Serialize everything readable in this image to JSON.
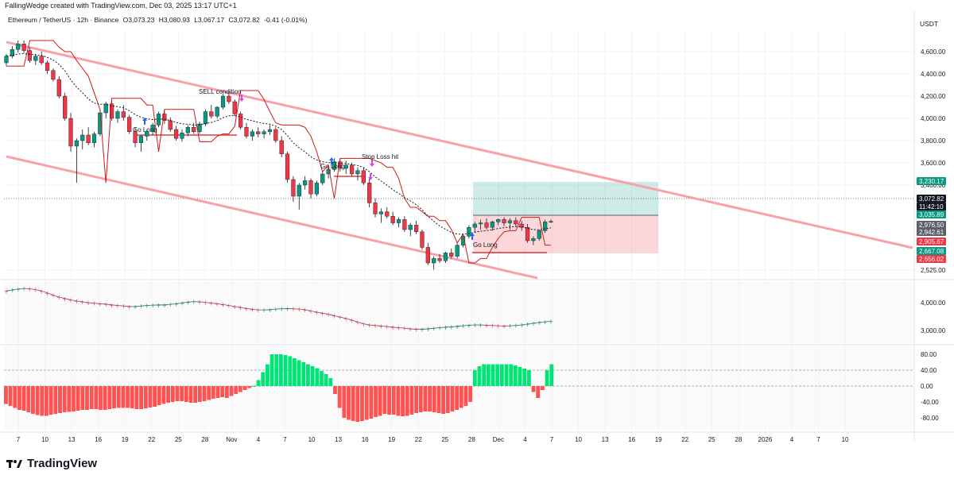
{
  "header": {
    "caption": "FallingWedge created with TradingView.com, Dec 03, 2025 13:17 UTC+1"
  },
  "symbol": {
    "name": "Ethereum / TetherUS · 12h · Binance",
    "ohlc": [
      "O3,073.23",
      "H3,080.93",
      "L3,067.17",
      "C3,072.82",
      "-0.41 (-0.01%)"
    ]
  },
  "currency": "USDT",
  "brand": "TradingView",
  "colors": {
    "up": "#089981",
    "down": "#f23645",
    "channel": "#f7a1a8",
    "stop": "#d11a1a",
    "grid": "#f0f3fa"
  },
  "chart_data": [
    {
      "type": "candlestick",
      "pane": "price",
      "timeframe": "12h",
      "x_ticks": [
        "7",
        "10",
        "13",
        "16",
        "19",
        "22",
        "25",
        "28",
        "Nov",
        "4",
        "7",
        "10",
        "13",
        "16",
        "19",
        "22",
        "25",
        "28",
        "Dec",
        "4",
        "7",
        "10",
        "13",
        "16",
        "19",
        "22",
        "25",
        "28",
        "2026",
        "4",
        "7",
        "10"
      ],
      "y_ticks": [
        "4,600.00",
        "4,400.00",
        "4,200.00",
        "4,000.00",
        "3,800.00",
        "3,600.00",
        "3,400.00",
        "2,525.00"
      ],
      "price_tags": [
        {
          "value": "3,230.17",
          "color": "#089981"
        },
        {
          "value": "3,072.82",
          "color": "#131722"
        },
        {
          "value": "11:42:10",
          "color": "#131722"
        },
        {
          "value": "3,035.89",
          "color": "#089981"
        },
        {
          "value": "2,976.50",
          "color": "#5d606b"
        },
        {
          "value": "2,942.61",
          "color": "#5d606b"
        },
        {
          "value": "2,905.67",
          "color": "#f23645"
        },
        {
          "value": "2,667.08",
          "color": "#089981"
        },
        {
          "value": "2,656.02",
          "color": "#f23645"
        }
      ],
      "candles": [
        [
          4500,
          4580,
          4470,
          4560
        ],
        [
          4560,
          4650,
          4540,
          4620
        ],
        [
          4620,
          4700,
          4590,
          4670
        ],
        [
          4670,
          4700,
          4590,
          4610
        ],
        [
          4610,
          4640,
          4500,
          4520
        ],
        [
          4520,
          4580,
          4480,
          4560
        ],
        [
          4560,
          4600,
          4480,
          4500
        ],
        [
          4500,
          4520,
          4400,
          4430
        ],
        [
          4430,
          4450,
          4330,
          4350
        ],
        [
          4350,
          4380,
          4180,
          4200
        ],
        [
          4200,
          4230,
          3980,
          4000
        ],
        [
          4000,
          4050,
          3700,
          3750
        ],
        [
          3750,
          3820,
          3420,
          3800
        ],
        [
          3800,
          3900,
          3720,
          3850
        ],
        [
          3850,
          3920,
          3760,
          3780
        ],
        [
          3780,
          3880,
          3740,
          3860
        ],
        [
          3860,
          4080,
          3840,
          4050
        ],
        [
          4050,
          4150,
          4000,
          4130
        ],
        [
          4130,
          4180,
          3980,
          4000
        ],
        [
          4000,
          4080,
          3960,
          4060
        ],
        [
          4060,
          4120,
          3980,
          4010
        ],
        [
          4010,
          4030,
          3860,
          3880
        ],
        [
          3880,
          3920,
          3740,
          3780
        ],
        [
          3780,
          3850,
          3700,
          3840
        ],
        [
          3840,
          3900,
          3800,
          3880
        ],
        [
          3880,
          3960,
          3850,
          3940
        ],
        [
          3940,
          4060,
          3920,
          4040
        ],
        [
          4040,
          4080,
          3950,
          3980
        ],
        [
          3980,
          4010,
          3880,
          3900
        ],
        [
          3900,
          3930,
          3800,
          3820
        ],
        [
          3820,
          3900,
          3790,
          3870
        ],
        [
          3870,
          3940,
          3840,
          3920
        ],
        [
          3920,
          3960,
          3860,
          3880
        ],
        [
          3880,
          3970,
          3860,
          3950
        ],
        [
          3950,
          4080,
          3930,
          4060
        ],
        [
          4060,
          4120,
          4000,
          4020
        ],
        [
          4020,
          4110,
          4000,
          4100
        ],
        [
          4100,
          4220,
          4080,
          4200
        ],
        [
          4200,
          4250,
          4130,
          4150
        ],
        [
          4150,
          4170,
          4020,
          4040
        ],
        [
          4040,
          4060,
          3900,
          3920
        ],
        [
          3920,
          3960,
          3820,
          3840
        ],
        [
          3840,
          3900,
          3800,
          3880
        ],
        [
          3880,
          3920,
          3830,
          3860
        ],
        [
          3860,
          3900,
          3820,
          3880
        ],
        [
          3880,
          3940,
          3850,
          3900
        ],
        [
          3900,
          3920,
          3780,
          3800
        ],
        [
          3800,
          3840,
          3650,
          3680
        ],
        [
          3680,
          3700,
          3420,
          3450
        ],
        [
          3450,
          3480,
          3250,
          3300
        ],
        [
          3300,
          3420,
          3180,
          3400
        ],
        [
          3400,
          3480,
          3360,
          3440
        ],
        [
          3440,
          3460,
          3280,
          3320
        ],
        [
          3320,
          3440,
          3300,
          3420
        ],
        [
          3420,
          3520,
          3400,
          3500
        ],
        [
          3500,
          3580,
          3460,
          3540
        ],
        [
          3540,
          3640,
          3520,
          3610
        ],
        [
          3610,
          3640,
          3520,
          3550
        ],
        [
          3550,
          3620,
          3500,
          3580
        ],
        [
          3580,
          3600,
          3480,
          3500
        ],
        [
          3500,
          3560,
          3440,
          3530
        ],
        [
          3530,
          3560,
          3400,
          3420
        ],
        [
          3420,
          3460,
          3200,
          3240
        ],
        [
          3240,
          3280,
          3110,
          3140
        ],
        [
          3140,
          3190,
          3060,
          3160
        ],
        [
          3160,
          3200,
          3100,
          3120
        ],
        [
          3120,
          3160,
          3040,
          3060
        ],
        [
          3060,
          3110,
          3020,
          3090
        ],
        [
          3090,
          3120,
          2980,
          3000
        ],
        [
          3000,
          3060,
          2940,
          3040
        ],
        [
          3040,
          3080,
          2960,
          2980
        ],
        [
          2980,
          3000,
          2820,
          2840
        ],
        [
          2840,
          2880,
          2680,
          2700
        ],
        [
          2700,
          2760,
          2640,
          2740
        ],
        [
          2740,
          2780,
          2700,
          2720
        ],
        [
          2720,
          2800,
          2700,
          2790
        ],
        [
          2790,
          2830,
          2740,
          2760
        ],
        [
          2760,
          2880,
          2740,
          2860
        ],
        [
          2860,
          2960,
          2840,
          2940
        ],
        [
          2940,
          3040,
          2920,
          3020
        ],
        [
          3020,
          3070,
          2980,
          3050
        ],
        [
          3050,
          3090,
          3000,
          3060
        ],
        [
          3060,
          3100,
          3000,
          3020
        ],
        [
          3020,
          3080,
          2990,
          3070
        ],
        [
          3070,
          3100,
          3040,
          3090
        ],
        [
          3090,
          3110,
          3030,
          3060
        ],
        [
          3060,
          3100,
          3000,
          3080
        ],
        [
          3080,
          3110,
          3030,
          3050
        ],
        [
          3050,
          3080,
          2990,
          3020
        ],
        [
          3020,
          3050,
          2880,
          2900
        ],
        [
          2900,
          2940,
          2860,
          2920
        ],
        [
          2920,
          3000,
          2900,
          2990
        ],
        [
          2990,
          3090,
          2970,
          3070
        ],
        [
          3070,
          3090,
          3060,
          3073
        ]
      ],
      "annotations": [
        "SELL condition",
        "Go Long",
        "Go Long",
        "Stop Loss hit",
        "Go Long"
      ]
    },
    {
      "type": "line",
      "pane": "indicator",
      "y_ticks": [
        "4,000.00",
        "3,000.00"
      ],
      "values": [
        4420,
        4460,
        4490,
        4510,
        4500,
        4470,
        4420,
        4350,
        4270,
        4200,
        4150,
        4100,
        4060,
        4030,
        4000,
        3980,
        3960,
        3950,
        3920,
        3900,
        3880,
        3860,
        3860,
        3880,
        3900,
        3910,
        3920,
        3920,
        3940,
        3960,
        3990,
        4020,
        4040,
        4030,
        4010,
        3990,
        3960,
        3930,
        3900,
        3860,
        3830,
        3790,
        3760,
        3740,
        3740,
        3750,
        3770,
        3780,
        3790,
        3780,
        3770,
        3750,
        3700,
        3660,
        3620,
        3580,
        3530,
        3480,
        3430,
        3370,
        3300,
        3240,
        3200,
        3180,
        3160,
        3140,
        3120,
        3100,
        3080,
        3060,
        3050,
        3050,
        3060,
        3080,
        3100,
        3120,
        3130,
        3150,
        3170,
        3190,
        3200,
        3200,
        3190,
        3180,
        3170,
        3160,
        3170,
        3180,
        3200,
        3230,
        3260,
        3290,
        3310,
        3330
      ]
    },
    {
      "type": "bar",
      "pane": "oscillator",
      "y_ticks": [
        "80.00",
        "40.00",
        "0.00",
        "-40.00",
        "-80.00"
      ],
      "values": [
        -45,
        -50,
        -55,
        -60,
        -62,
        -66,
        -70,
        -73,
        -75,
        -75,
        -72,
        -70,
        -68,
        -66,
        -65,
        -64,
        -62,
        -60,
        -60,
        -58,
        -58,
        -60,
        -60,
        -58,
        -56,
        -55,
        -55,
        -55,
        -56,
        -58,
        -58,
        -56,
        -54,
        -52,
        -48,
        -45,
        -42,
        -40,
        -38,
        -38,
        -40,
        -42,
        -42,
        -40,
        -38,
        -35,
        -32,
        -30,
        -28,
        -30,
        -25,
        -20,
        -15,
        -10,
        -5,
        0,
        15,
        35,
        55,
        80,
        80,
        80,
        78,
        75,
        70,
        65,
        60,
        55,
        50,
        45,
        38,
        30,
        20,
        -20,
        -55,
        -80,
        -85,
        -88,
        -90,
        -88,
        -85,
        -82,
        -78,
        -75,
        -70,
        -72,
        -72,
        -75,
        -76,
        -75,
        -72,
        -68,
        -66,
        -64,
        -64,
        -66,
        -68,
        -70,
        -68,
        -64,
        -60,
        -55,
        -50,
        -40,
        40,
        50,
        55,
        55,
        55,
        55,
        55,
        55,
        55,
        52,
        48,
        44,
        40,
        -15,
        -30,
        -10,
        40,
        55
      ]
    }
  ]
}
